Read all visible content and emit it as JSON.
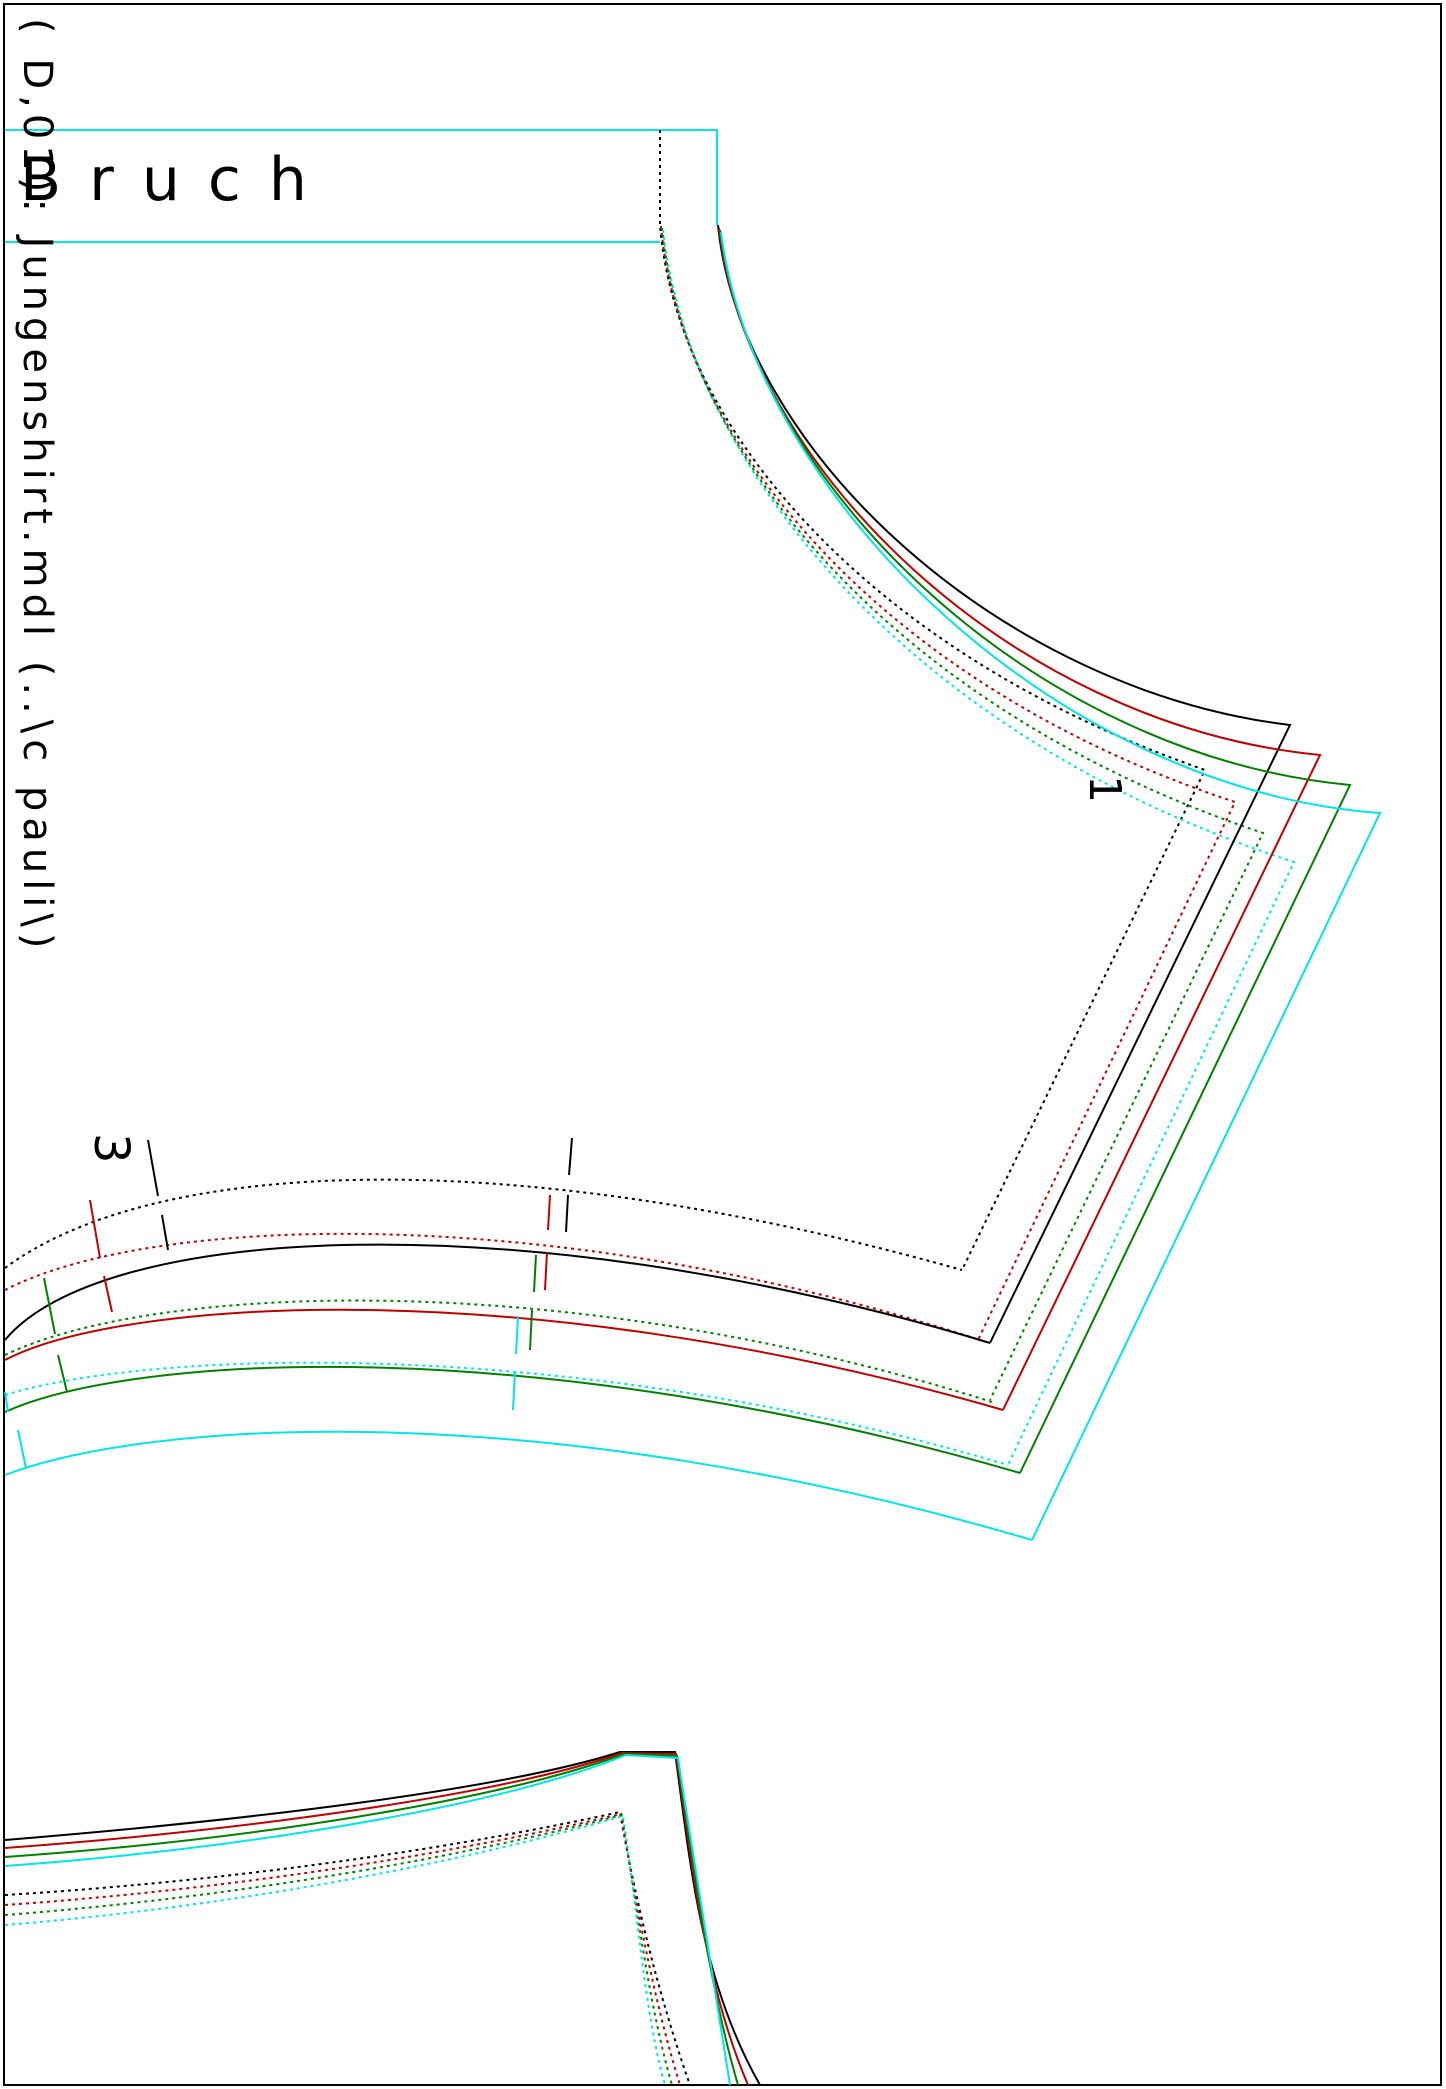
{
  "sheet": {
    "fold_label": "Bruch",
    "file_label": "( D,01): Jungenshirt.mdl (..\\c pauli\\)",
    "piece_number_1": "1",
    "piece_number_3": "3"
  },
  "size_colors": {
    "black": "#000000",
    "red": "#c00000",
    "green": "#008000",
    "cyan": "#00e5e5"
  },
  "line_styles": {
    "solid": "cut line",
    "dotted": "seam line"
  }
}
